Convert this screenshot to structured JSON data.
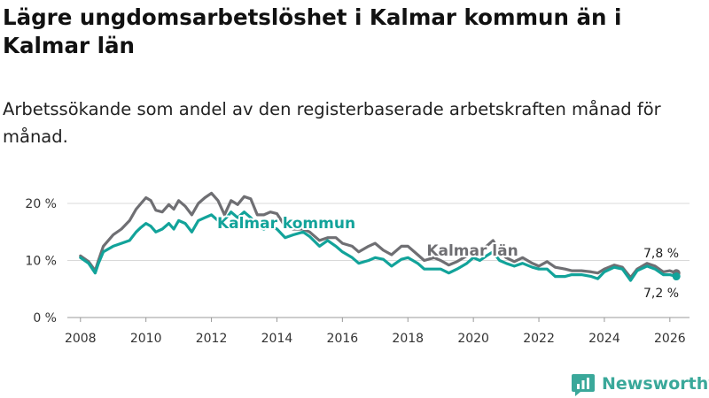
{
  "header": {
    "title": "Lägre ungdomsarbetslöshet i Kalmar kommun än i Kalmar län",
    "subtitle": "Arbetssökande som andel av den registerbaserade arbetskraften månad för månad."
  },
  "brand": {
    "name": "Newsworthy",
    "icon": "bar-chart-logo-icon",
    "color": "#3aa89a"
  },
  "chart_data": {
    "type": "line",
    "title": "",
    "xlabel": "",
    "ylabel": "",
    "ylim": [
      0,
      21
    ],
    "xlim": [
      2007.6,
      2026.6
    ],
    "grid": true,
    "yticks": [
      0,
      10,
      20
    ],
    "ytick_labels": [
      "0 %",
      "10 %",
      "20 %"
    ],
    "xticks": [
      2008,
      2010,
      2012,
      2014,
      2016,
      2018,
      2020,
      2022,
      2024,
      2026
    ],
    "xtick_labels": [
      "2008",
      "2010",
      "2012",
      "2014",
      "2016",
      "2018",
      "2020",
      "2022",
      "2024",
      "2026"
    ],
    "series": [
      {
        "name": "Kalmar län",
        "label": "Kalmar län",
        "color": "#6f6f73",
        "end_label": "7,8 %",
        "x": [
          2008.0,
          2008.25,
          2008.45,
          2008.55,
          2008.7,
          2009.0,
          2009.25,
          2009.5,
          2009.7,
          2009.85,
          2010.0,
          2010.15,
          2010.3,
          2010.5,
          2010.7,
          2010.85,
          2011.0,
          2011.2,
          2011.4,
          2011.6,
          2011.8,
          2012.0,
          2012.2,
          2012.4,
          2012.6,
          2012.8,
          2013.0,
          2013.2,
          2013.4,
          2013.6,
          2013.8,
          2014.0,
          2014.25,
          2014.5,
          2014.8,
          2015.0,
          2015.3,
          2015.55,
          2015.8,
          2016.0,
          2016.3,
          2016.5,
          2016.8,
          2017.0,
          2017.25,
          2017.5,
          2017.8,
          2018.0,
          2018.3,
          2018.5,
          2018.8,
          2019.0,
          2019.25,
          2019.5,
          2019.8,
          2020.0,
          2020.2,
          2020.4,
          2020.6,
          2020.8,
          2021.0,
          2021.25,
          2021.5,
          2021.8,
          2022.0,
          2022.25,
          2022.5,
          2022.8,
          2023.0,
          2023.3,
          2023.6,
          2023.8,
          2024.0,
          2024.3,
          2024.55,
          2024.8,
          2025.0,
          2025.3,
          2025.55,
          2025.8,
          2026.0,
          2026.2
        ],
        "values": [
          10.8,
          9.8,
          8.2,
          10.0,
          12.5,
          14.5,
          15.5,
          17.0,
          19.0,
          20.0,
          21.0,
          20.5,
          18.8,
          18.5,
          19.8,
          19.0,
          20.5,
          19.5,
          18.0,
          20.0,
          21.0,
          21.8,
          20.5,
          18.0,
          20.5,
          19.8,
          21.2,
          20.8,
          18.0,
          18.0,
          18.5,
          18.2,
          16.0,
          15.5,
          15.5,
          15.0,
          13.5,
          14.0,
          14.0,
          13.0,
          12.5,
          11.5,
          12.5,
          13.0,
          11.8,
          11.0,
          12.5,
          12.5,
          11.0,
          10.0,
          10.5,
          10.0,
          9.2,
          9.8,
          10.8,
          12.0,
          11.5,
          12.5,
          13.5,
          11.5,
          10.5,
          9.8,
          10.5,
          9.5,
          9.0,
          9.8,
          8.8,
          8.5,
          8.2,
          8.2,
          8.0,
          7.8,
          8.5,
          9.2,
          8.8,
          7.0,
          8.5,
          9.5,
          9.0,
          8.0,
          8.2,
          7.8
        ]
      },
      {
        "name": "Kalmar kommun",
        "label": "Kalmar kommun",
        "color": "#12a39a",
        "end_label": "7,2 %",
        "x": [
          2008.0,
          2008.25,
          2008.45,
          2008.55,
          2008.7,
          2009.0,
          2009.25,
          2009.5,
          2009.7,
          2009.85,
          2010.0,
          2010.15,
          2010.3,
          2010.5,
          2010.7,
          2010.85,
          2011.0,
          2011.2,
          2011.4,
          2011.6,
          2011.8,
          2012.0,
          2012.2,
          2012.4,
          2012.6,
          2012.8,
          2013.0,
          2013.2,
          2013.4,
          2013.6,
          2013.8,
          2014.0,
          2014.25,
          2014.5,
          2014.8,
          2015.0,
          2015.3,
          2015.55,
          2015.8,
          2016.0,
          2016.3,
          2016.5,
          2016.8,
          2017.0,
          2017.25,
          2017.5,
          2017.8,
          2018.0,
          2018.3,
          2018.5,
          2018.8,
          2019.0,
          2019.25,
          2019.5,
          2019.8,
          2020.0,
          2020.2,
          2020.4,
          2020.6,
          2020.8,
          2021.0,
          2021.25,
          2021.5,
          2021.8,
          2022.0,
          2022.25,
          2022.5,
          2022.8,
          2023.0,
          2023.3,
          2023.6,
          2023.8,
          2024.0,
          2024.3,
          2024.55,
          2024.8,
          2025.0,
          2025.3,
          2025.55,
          2025.8,
          2026.0,
          2026.2
        ],
        "values": [
          10.5,
          9.5,
          7.8,
          9.5,
          11.5,
          12.5,
          13.0,
          13.5,
          15.0,
          15.8,
          16.5,
          16.0,
          15.0,
          15.5,
          16.5,
          15.5,
          17.0,
          16.5,
          15.0,
          17.0,
          17.5,
          18.0,
          17.0,
          17.0,
          18.5,
          17.5,
          18.5,
          17.5,
          16.0,
          15.5,
          16.0,
          15.5,
          14.0,
          14.5,
          15.0,
          14.2,
          12.5,
          13.5,
          12.5,
          11.5,
          10.5,
          9.5,
          10.0,
          10.5,
          10.2,
          9.0,
          10.2,
          10.5,
          9.5,
          8.5,
          8.5,
          8.5,
          7.8,
          8.5,
          9.5,
          10.5,
          10.0,
          10.8,
          11.5,
          10.0,
          9.5,
          9.0,
          9.5,
          8.8,
          8.5,
          8.5,
          7.2,
          7.2,
          7.5,
          7.5,
          7.2,
          6.8,
          8.0,
          8.8,
          8.5,
          6.5,
          8.2,
          9.0,
          8.5,
          7.5,
          7.5,
          7.2
        ]
      }
    ]
  }
}
